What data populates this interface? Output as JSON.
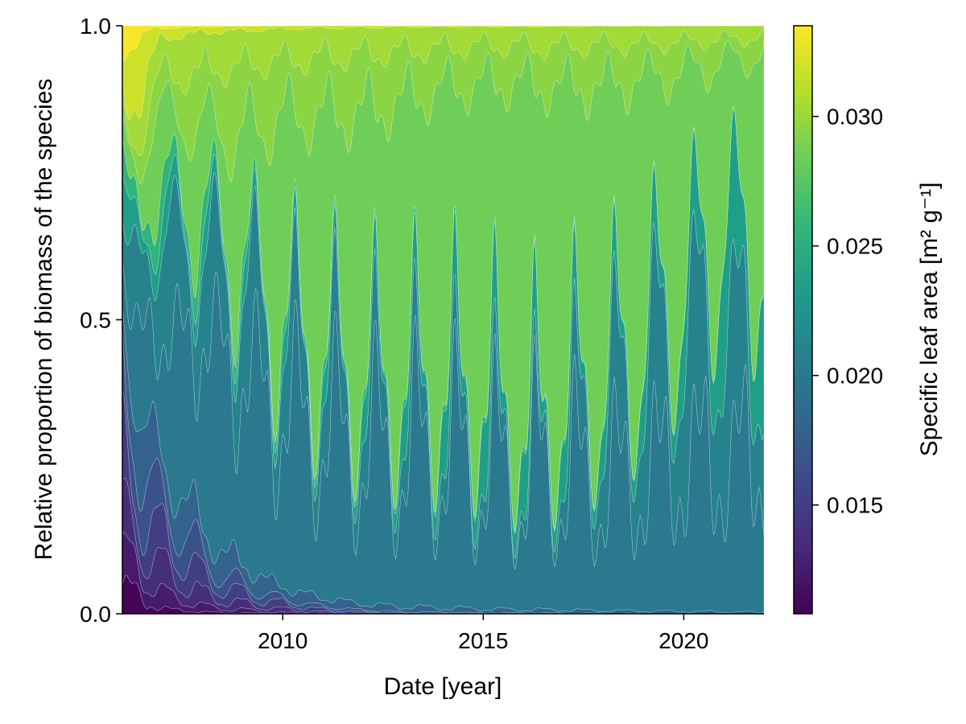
{
  "chart_data": {
    "type": "area",
    "stacked": true,
    "normalized": true,
    "xlabel": "Date [year]",
    "ylabel": "Relative proportion of biomass of the species",
    "xlim": [
      2006,
      2022
    ],
    "ylim": [
      0,
      1
    ],
    "xticks": [
      2010,
      2015,
      2020
    ],
    "xtick_labels": [
      "2010",
      "2015",
      "2020"
    ],
    "yticks": [
      0.0,
      0.5,
      1.0
    ],
    "ytick_labels": [
      "0.0",
      "0.5",
      "1.0"
    ],
    "grid": false,
    "colorbar": {
      "label": "Specific leaf area [m² g⁻¹]",
      "colormap": "viridis",
      "range": [
        0.0108,
        0.0335
      ],
      "ticks": [
        0.015,
        0.02,
        0.025,
        0.03
      ],
      "tick_labels": [
        "0.015",
        "0.020",
        "0.025",
        "0.030"
      ]
    },
    "colors": {
      "viridis": [
        "#440154",
        "#482878",
        "#3e4989",
        "#31688e",
        "#26828e",
        "#1f9e89",
        "#35b779",
        "#6ece58",
        "#b5de2b",
        "#fde725"
      ]
    },
    "series": [
      {
        "sla": 0.011,
        "keys": [
          [
            2006.0,
            0.05
          ],
          [
            2006.3,
            0.045
          ],
          [
            2006.6,
            0.02
          ],
          [
            2007.0,
            0.01
          ],
          [
            2008.0,
            0.003
          ],
          [
            2010.0,
            0.0
          ],
          [
            2022.0,
            0.0
          ]
        ]
      },
      {
        "sla": 0.0125,
        "keys": [
          [
            2006.0,
            0.06
          ],
          [
            2006.4,
            0.05
          ],
          [
            2007.0,
            0.03
          ],
          [
            2008.0,
            0.01
          ],
          [
            2009.0,
            0.005
          ],
          [
            2010.0,
            0.002
          ],
          [
            2012.0,
            0.0
          ],
          [
            2022.0,
            0.0
          ]
        ]
      },
      {
        "sla": 0.0138,
        "keys": [
          [
            2006.0,
            0.08
          ],
          [
            2006.4,
            0.05
          ],
          [
            2007.0,
            0.05
          ],
          [
            2008.0,
            0.02
          ],
          [
            2009.0,
            0.01
          ],
          [
            2011.0,
            0.002
          ],
          [
            2013.0,
            0.0
          ],
          [
            2022.0,
            0.0
          ]
        ]
      },
      {
        "sla": 0.015,
        "keys": [
          [
            2006.0,
            0.12
          ],
          [
            2006.4,
            0.06
          ],
          [
            2007.0,
            0.06
          ],
          [
            2008.0,
            0.03
          ],
          [
            2009.0,
            0.015
          ],
          [
            2011.0,
            0.004
          ],
          [
            2013.0,
            0.001
          ],
          [
            2022.0,
            0.0
          ]
        ]
      },
      {
        "sla": 0.0165,
        "keys": [
          [
            2006.0,
            0.15
          ],
          [
            2006.4,
            0.08
          ],
          [
            2007.5,
            0.05
          ],
          [
            2008.5,
            0.02
          ],
          [
            2010.0,
            0.008
          ],
          [
            2012.0,
            0.003
          ],
          [
            2015.0,
            0.001
          ],
          [
            2022.0,
            0.0
          ]
        ]
      },
      {
        "sla": 0.018,
        "keys": [
          [
            2006.0,
            0.12
          ],
          [
            2006.5,
            0.1
          ],
          [
            2008.0,
            0.05
          ],
          [
            2010.0,
            0.02
          ],
          [
            2012.0,
            0.01
          ],
          [
            2016.0,
            0.005
          ],
          [
            2022.0,
            0.003
          ]
        ]
      },
      {
        "sla": 0.02,
        "keys": [
          [
            2006.0,
            0.1
          ],
          [
            2007.0,
            0.25
          ],
          [
            2008.0,
            0.35
          ],
          [
            2010.0,
            0.3
          ],
          [
            2012.0,
            0.25
          ],
          [
            2014.0,
            0.25
          ],
          [
            2016.0,
            0.2
          ],
          [
            2018.0,
            0.2
          ],
          [
            2020.0,
            0.25
          ],
          [
            2022.0,
            0.28
          ]
        ]
      },
      {
        "sla": 0.021,
        "keys": [
          [
            2006.0,
            0.08
          ],
          [
            2007.0,
            0.2
          ],
          [
            2008.0,
            0.15
          ],
          [
            2009.0,
            0.15
          ],
          [
            2010.0,
            0.12
          ],
          [
            2012.0,
            0.08
          ],
          [
            2014.0,
            0.05
          ],
          [
            2015.0,
            0.04
          ],
          [
            2016.5,
            0.02
          ],
          [
            2018.0,
            0.12
          ],
          [
            2019.5,
            0.2
          ],
          [
            2021.0,
            0.25
          ],
          [
            2022.0,
            0.18
          ]
        ]
      },
      {
        "sla": 0.0235,
        "keys": [
          [
            2006.0,
            0.06
          ],
          [
            2007.5,
            0.04
          ],
          [
            2009.0,
            0.03
          ],
          [
            2011.0,
            0.03
          ],
          [
            2013.0,
            0.05
          ],
          [
            2015.0,
            0.08
          ],
          [
            2016.5,
            0.06
          ],
          [
            2018.0,
            0.05
          ],
          [
            2020.0,
            0.08
          ],
          [
            2021.5,
            0.2
          ],
          [
            2022.0,
            0.15
          ]
        ]
      },
      {
        "sla": 0.0255,
        "keys": [
          [
            2006.0,
            0.04
          ],
          [
            2007.0,
            0.05
          ],
          [
            2009.0,
            0.02
          ],
          [
            2012.0,
            0.01
          ],
          [
            2016.0,
            0.005
          ],
          [
            2022.0,
            0.002
          ]
        ]
      },
      {
        "sla": 0.0285,
        "keys": [
          [
            2006.0,
            0.05
          ],
          [
            2007.0,
            0.15
          ],
          [
            2008.0,
            0.15
          ],
          [
            2009.0,
            0.2
          ],
          [
            2010.0,
            0.35
          ],
          [
            2012.0,
            0.45
          ],
          [
            2014.0,
            0.5
          ],
          [
            2016.0,
            0.55
          ],
          [
            2017.0,
            0.5
          ],
          [
            2018.0,
            0.5
          ],
          [
            2019.0,
            0.45
          ],
          [
            2020.0,
            0.35
          ],
          [
            2021.0,
            0.3
          ],
          [
            2022.0,
            0.33
          ]
        ]
      },
      {
        "sla": 0.0295,
        "keys": [
          [
            2006.0,
            0.03
          ],
          [
            2007.0,
            0.07
          ],
          [
            2008.0,
            0.1
          ],
          [
            2009.0,
            0.12
          ],
          [
            2010.0,
            0.1
          ],
          [
            2012.0,
            0.1
          ],
          [
            2014.0,
            0.07
          ],
          [
            2016.0,
            0.06
          ],
          [
            2018.0,
            0.07
          ],
          [
            2020.0,
            0.05
          ],
          [
            2022.0,
            0.03
          ]
        ]
      },
      {
        "sla": 0.0303,
        "keys": [
          [
            2006.0,
            0.05
          ],
          [
            2007.0,
            0.08
          ],
          [
            2009.0,
            0.06
          ],
          [
            2011.0,
            0.05
          ],
          [
            2013.0,
            0.04
          ],
          [
            2015.0,
            0.03
          ],
          [
            2017.0,
            0.03
          ],
          [
            2019.0,
            0.03
          ],
          [
            2022.0,
            0.02
          ]
        ]
      },
      {
        "sla": 0.0318,
        "keys": [
          [
            2006.0,
            0.1
          ],
          [
            2006.5,
            0.1
          ],
          [
            2007.0,
            0.02
          ],
          [
            2008.0,
            0.01
          ],
          [
            2010.0,
            0.005
          ],
          [
            2013.0,
            0.002
          ],
          [
            2022.0,
            0.0
          ]
        ]
      },
      {
        "sla": 0.0333,
        "keys": [
          [
            2006.0,
            0.05
          ],
          [
            2006.3,
            0.03
          ],
          [
            2006.8,
            0.005
          ],
          [
            2008.0,
            0.002
          ],
          [
            2010.0,
            0.0
          ],
          [
            2022.0,
            0.0
          ]
        ]
      }
    ]
  }
}
